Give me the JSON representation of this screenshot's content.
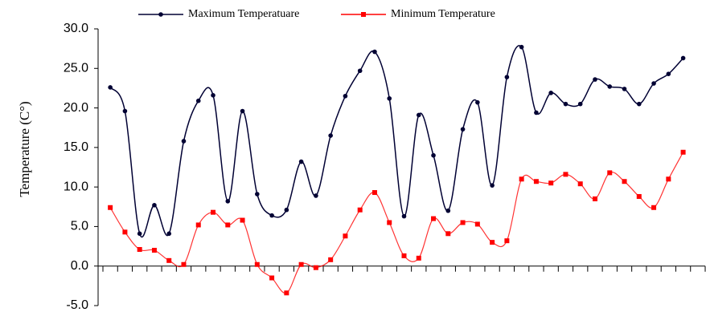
{
  "chart_data": {
    "type": "line",
    "y_label": "Temperature (C°)",
    "categories": [
      null,
      null,
      null,
      null,
      null,
      null,
      null,
      null,
      null,
      null,
      null,
      null,
      null,
      null,
      null,
      null,
      null,
      null,
      null,
      null,
      null,
      null,
      null,
      null,
      null,
      null,
      null,
      null,
      null,
      null,
      null,
      null,
      null,
      null,
      null,
      null,
      null,
      null,
      null,
      null
    ],
    "series": [
      {
        "name": "Maximum Temperatuare",
        "color": "#000033",
        "marker": "circle",
        "values": [
          22.6,
          19.6,
          4.1,
          7.7,
          4.1,
          15.8,
          20.9,
          21.6,
          8.2,
          19.6,
          9.1,
          6.4,
          7.1,
          13.2,
          8.9,
          16.5,
          21.5,
          24.7,
          27.1,
          21.2,
          6.3,
          19.1,
          14.0,
          7.0,
          17.3,
          20.7,
          10.2,
          23.9,
          27.7,
          19.4,
          21.9,
          20.5,
          20.5,
          23.6,
          22.7,
          22.4,
          20.5,
          23.1,
          24.3,
          26.3
        ]
      },
      {
        "name": "Minimum Temperature",
        "color": "#ff0000",
        "marker": "square",
        "values": [
          7.4,
          4.3,
          2.1,
          2.0,
          0.7,
          0.2,
          5.2,
          6.8,
          5.2,
          5.8,
          0.2,
          -1.5,
          -3.4,
          0.2,
          -0.2,
          0.8,
          3.8,
          7.1,
          9.3,
          5.5,
          1.3,
          1.0,
          6.0,
          4.1,
          5.5,
          5.3,
          3.0,
          3.2,
          11.0,
          10.7,
          10.5,
          11.6,
          10.4,
          8.5,
          11.8,
          10.7,
          8.8,
          7.4,
          11.0,
          14.4
        ]
      }
    ],
    "ylim": [
      -5,
      30
    ],
    "yticks": [
      {
        "value": -5,
        "label": "-5.0"
      },
      {
        "value": 0,
        "label": "0.0"
      },
      {
        "value": 5,
        "label": "5.0"
      },
      {
        "value": 10,
        "label": "10.0"
      },
      {
        "value": 15,
        "label": "15.0"
      },
      {
        "value": 20,
        "label": "20.0"
      },
      {
        "value": 25,
        "label": "25.0"
      },
      {
        "value": 30,
        "label": "30.0"
      }
    ],
    "smooth": true,
    "grid": false
  }
}
